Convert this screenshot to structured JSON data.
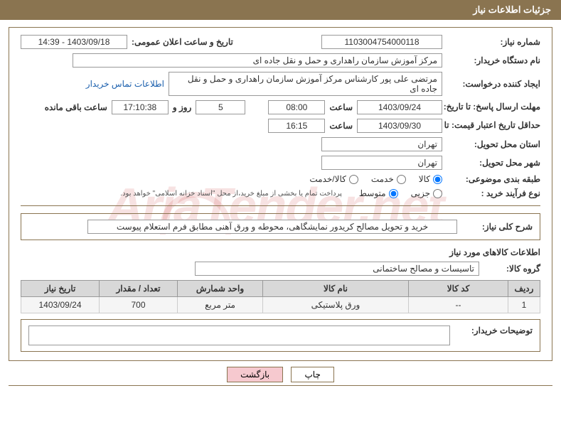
{
  "header": {
    "title": "جزئیات اطلاعات نیاز"
  },
  "fields": {
    "need_no_label": "شماره نیاز:",
    "need_no": "1103004754000118",
    "announce_label": "تاریخ و ساعت اعلان عمومی:",
    "announce": "1403/09/18 - 14:39",
    "buyer_org_label": "نام دستگاه خریدار:",
    "buyer_org": "مرکز آموزش سازمان راهداری و حمل و نقل جاده ای",
    "requester_label": "ایجاد کننده درخواست:",
    "requester": "مرتضی علی پور کارشناس مرکز آموزش سازمان راهداری و حمل و نقل جاده ای",
    "contact_link": "اطلاعات تماس خریدار",
    "reply_deadline_label": "مهلت ارسال پاسخ: تا تاریخ:",
    "reply_date": "1403/09/24",
    "time_label": "ساعت",
    "reply_time": "08:00",
    "days_val": "5",
    "days_and": "روز و",
    "countdown": "17:10:38",
    "remain_label": "ساعت باقی مانده",
    "price_validity_label": "حداقل تاریخ اعتبار قیمت: تا تاریخ:",
    "price_date": "1403/09/30",
    "price_time": "16:15",
    "deliver_state_label": "استان محل تحویل:",
    "deliver_state": "تهران",
    "deliver_city_label": "شهر محل تحویل:",
    "deliver_city": "تهران",
    "class_label": "طبقه بندی موضوعی:",
    "radios_class": [
      {
        "label": "کالا",
        "checked": true
      },
      {
        "label": "خدمت",
        "checked": false
      },
      {
        "label": "کالا/خدمت",
        "checked": false
      }
    ],
    "process_label": "نوع فرآیند خرید :",
    "radios_process": [
      {
        "label": "جزیی",
        "checked": false
      },
      {
        "label": "متوسط",
        "checked": true
      }
    ],
    "process_note": "پرداخت تمام یا بخشی از مبلغ خرید،از محل \"اسناد خزانه اسلامی\" خواهد بود.",
    "overall_label": "شرح کلی نیاز:",
    "overall_text": "خرید و تحویل مصالح کریدور نمایشگاهی، محوطه و ورق آهنی مطابق فرم استعلام پیوست",
    "goods_info_label": "اطلاعات کالاهای مورد نیاز",
    "group_label": "گروه کالا:",
    "group_val": "تاسیسات و مصالح ساختمانی",
    "buyer_notes_label": "توضیحات خریدار:"
  },
  "table": {
    "headers": [
      "ردیف",
      "کد کالا",
      "نام کالا",
      "واحد شمارش",
      "تعداد / مقدار",
      "تاریخ نیاز"
    ],
    "rows": [
      [
        "1",
        "--",
        "ورق پلاستیکی",
        "متر مربع",
        "700",
        "1403/09/24"
      ]
    ],
    "col_widths": [
      "45px",
      "140px",
      "auto",
      "120px",
      "110px",
      "110px"
    ]
  },
  "buttons": {
    "print": "چاپ",
    "back": "بازگشت"
  },
  "colors": {
    "header_bg": "#8a7450",
    "border": "#8a7450",
    "th_bg": "#d8d8d8",
    "td_bg": "#f5f5f5",
    "link": "#1a5fad",
    "btn_pink": "#f6c9cf"
  }
}
